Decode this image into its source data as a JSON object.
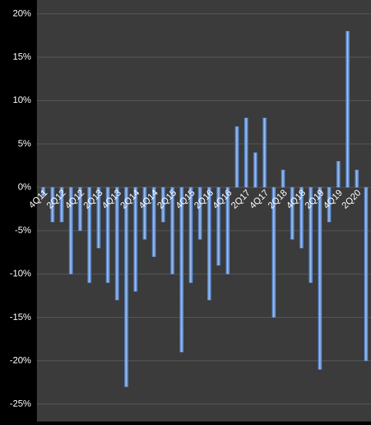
{
  "chart_data": {
    "type": "bar",
    "categories": [
      "4Q11",
      null,
      "2Q12",
      null,
      "4Q12",
      null,
      "2Q13",
      null,
      "4Q13",
      null,
      "2Q14",
      null,
      "4Q14",
      null,
      "2Q15",
      null,
      "4Q15",
      null,
      "2Q16",
      null,
      "4Q16",
      null,
      "2Q17",
      null,
      "4Q17",
      null,
      "2Q18",
      null,
      "4Q18",
      null,
      "2Q19",
      null,
      "4Q19",
      null,
      "2Q20",
      null
    ],
    "values": [
      -1,
      -4,
      -4,
      -10,
      -5,
      -11,
      -7,
      -11,
      -13,
      -23,
      -12,
      -6,
      -8,
      -4,
      -10,
      -19,
      -11,
      -6,
      -13,
      -9,
      -10,
      7,
      8,
      4,
      8,
      -15,
      2,
      -6,
      -7,
      -11,
      -21,
      -4,
      3,
      18,
      2,
      -20
    ],
    "color": "#5b8fd9",
    "ylim": [
      -27,
      21.6
    ],
    "yticks": [
      {
        "value": -25,
        "label": "-25%"
      },
      {
        "value": -20,
        "label": "-20%"
      },
      {
        "value": -15,
        "label": "-15%"
      },
      {
        "value": -10,
        "label": "-10%"
      },
      {
        "value": -5,
        "label": "-5%"
      },
      {
        "value": 0,
        "label": "0%"
      },
      {
        "value": 5,
        "label": "5%"
      },
      {
        "value": 10,
        "label": "10%"
      },
      {
        "value": 15,
        "label": "15%"
      },
      {
        "value": 20,
        "label": "20%"
      }
    ],
    "grid": true
  }
}
